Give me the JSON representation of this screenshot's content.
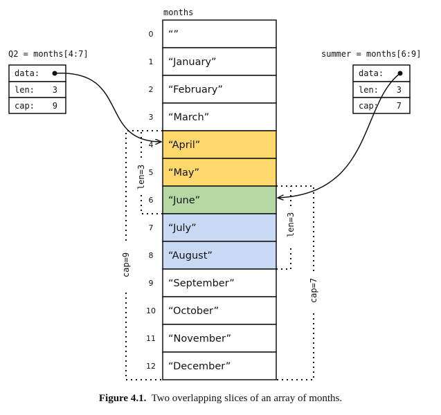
{
  "array": {
    "name": "months",
    "indices": [
      "0",
      "1",
      "2",
      "3",
      "4",
      "5",
      "6",
      "7",
      "8",
      "9",
      "10",
      "11",
      "12"
    ],
    "values": [
      "“”",
      "“January”",
      "“February”",
      "“March”",
      "“April”",
      "“May”",
      "“June”",
      "“July”",
      "“August”",
      "“September”",
      "“October”",
      "“November”",
      "“December”"
    ],
    "highlight": {
      "Q2_only": [
        4,
        5
      ],
      "shared": [
        6
      ],
      "summer_only": [
        7,
        8
      ]
    },
    "colors": {
      "Q2_only": "#fdd86c",
      "shared": "#b5d8a5",
      "summer_only": "#c8d9f4",
      "default": "#ffffff"
    }
  },
  "q2": {
    "title": "Q2 = months[4:7]",
    "fields": [
      {
        "label": "data:",
        "value": ""
      },
      {
        "label": "len:",
        "value": "3"
      },
      {
        "label": "cap:",
        "value": "9"
      }
    ],
    "len_label": "len=3",
    "cap_label": "cap=9"
  },
  "summer": {
    "title": "summer = months[6:9]",
    "fields": [
      {
        "label": "data:",
        "value": ""
      },
      {
        "label": "len:",
        "value": "3"
      },
      {
        "label": "cap:",
        "value": "7"
      }
    ],
    "len_label": "len=3",
    "cap_label": "cap=7"
  },
  "caption": {
    "label": "Figure 4.1.",
    "text": "Two overlapping slices of an array of months."
  }
}
